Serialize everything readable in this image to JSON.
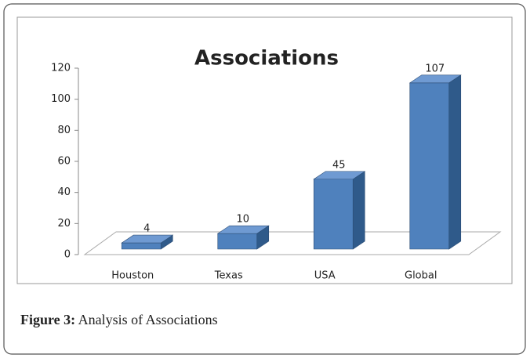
{
  "chart_data": {
    "type": "bar3d",
    "title": "Associations",
    "categories": [
      "Houston",
      "Texas",
      "USA",
      "Global"
    ],
    "values": [
      4,
      10,
      45,
      107
    ],
    "color": "#4f81bd",
    "ylim": [
      0,
      120
    ],
    "yticks": [
      0,
      20,
      40,
      60,
      80,
      100,
      120
    ]
  },
  "caption": {
    "label": "Figure 3:",
    "text": "Analysis of Associations"
  }
}
